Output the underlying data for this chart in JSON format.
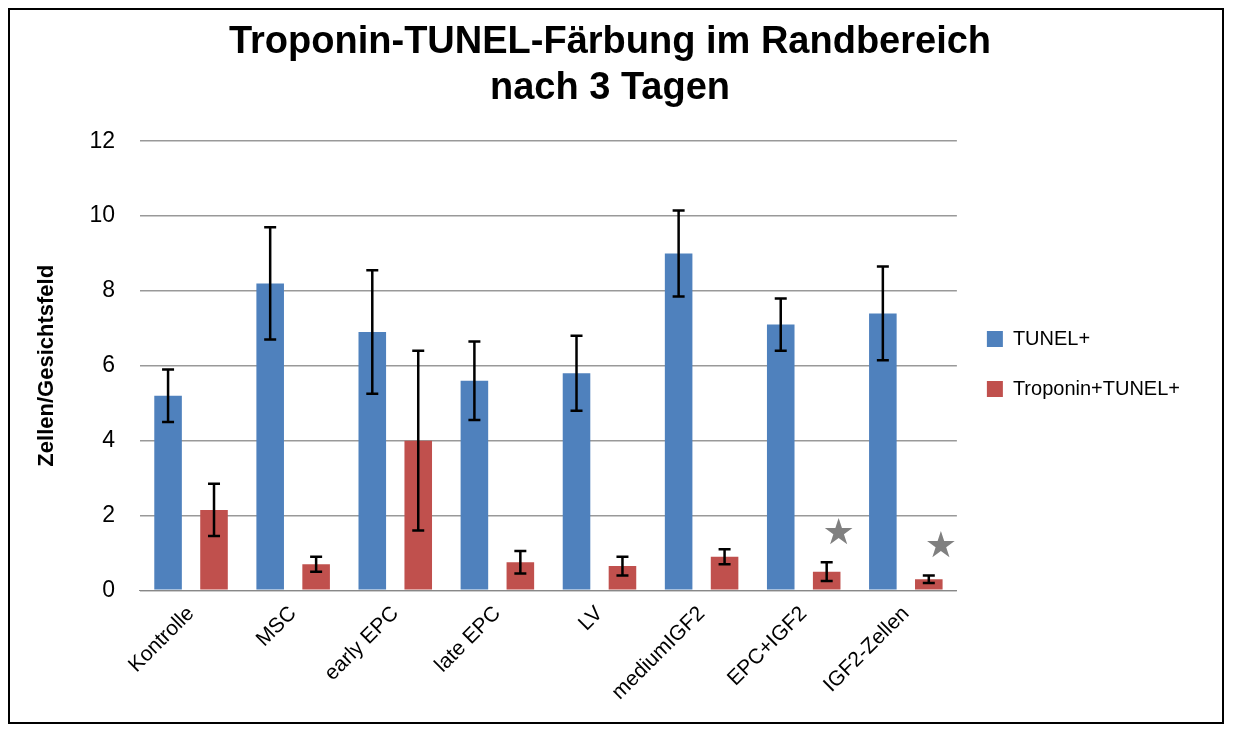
{
  "chart_data": {
    "type": "bar",
    "title": "Troponin-TUNEL-Färbung im Randbereich\nnach 3 Tagen",
    "ylabel": "Zellen/Gesichtsfeld",
    "categories": [
      "Kontrolle",
      "MSC",
      "early EPC",
      "late EPC",
      "LV",
      "mediumIGF2",
      "EPC+IGF2",
      "IGF2-Zellen"
    ],
    "series": [
      {
        "name": "TUNEL+",
        "color": "#4f81bd",
        "values": [
          5.2,
          8.2,
          6.9,
          5.6,
          5.8,
          9.0,
          7.1,
          7.4
        ],
        "errors": [
          0.7,
          1.5,
          1.65,
          1.05,
          1.0,
          1.15,
          0.7,
          1.25
        ]
      },
      {
        "name": "Troponin+TUNEL+",
        "color": "#c0504d",
        "values": [
          2.15,
          0.7,
          4.0,
          0.75,
          0.65,
          0.9,
          0.5,
          0.3
        ],
        "errors": [
          0.7,
          0.2,
          2.4,
          0.3,
          0.25,
          0.2,
          0.25,
          0.1
        ],
        "value_labels": [
          null,
          null,
          null,
          null,
          null,
          null,
          "★",
          "★"
        ]
      }
    ],
    "ylim": [
      0,
      12
    ],
    "yticks": [
      0,
      2,
      4,
      6,
      8,
      10,
      12
    ],
    "grid": "y",
    "legend": "right"
  }
}
